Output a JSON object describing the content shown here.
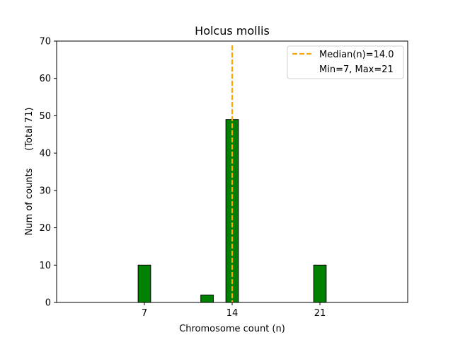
{
  "chart_data": {
    "type": "bar",
    "title": "Holcus mollis",
    "xlabel": "Chromosome count (n)",
    "ylabel": "Num of counts      (Total 71)",
    "xlim": [
      0,
      28
    ],
    "ylim": [
      0,
      70
    ],
    "x_ticks": [
      7,
      14,
      21
    ],
    "y_ticks": [
      0,
      10,
      20,
      30,
      40,
      50,
      60,
      70
    ],
    "bar_width": 1,
    "bars": [
      {
        "x": 7,
        "value": 10
      },
      {
        "x": 12,
        "value": 2
      },
      {
        "x": 14,
        "value": 49
      },
      {
        "x": 21,
        "value": 10
      }
    ],
    "median_line": {
      "x": 14.0,
      "style": "dashed"
    },
    "legend": {
      "position": "top-right",
      "entries": [
        "Median(n)=14.0",
        "Min=7, Max=21"
      ]
    },
    "colors": {
      "bar_fill": "#008000",
      "bar_edge": "#000000",
      "median": "#FFA500"
    }
  }
}
